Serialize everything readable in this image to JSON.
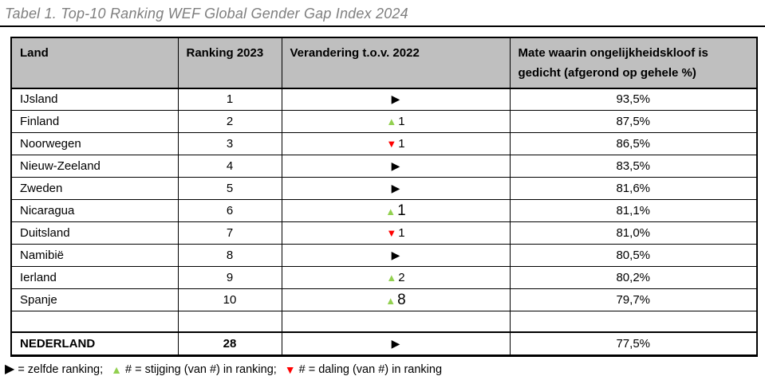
{
  "title": "Tabel 1. Top-10 Ranking WEF Global Gender Gap Index 2024",
  "glyphs": {
    "same": "▶",
    "up": "▲",
    "down": "▼"
  },
  "colors": {
    "up": "#92d050",
    "down": "#ff0000",
    "same": "#000000",
    "header_bg": "#bfbfbf",
    "title": "#7f7f7f",
    "border": "#000000"
  },
  "table": {
    "headers": [
      "Land",
      "Ranking 2023",
      "Verandering t.o.v. 2022",
      "Mate waarin ongelijkheidskloof is gedicht (afgerond op gehele %)"
    ],
    "rows": [
      {
        "land": "IJsland",
        "ranking": "1",
        "change": {
          "dir": "same",
          "amount": ""
        },
        "pct": "93,5%"
      },
      {
        "land": "Finland",
        "ranking": "2",
        "change": {
          "dir": "up",
          "amount": "1"
        },
        "pct": "87,5%"
      },
      {
        "land": "Noorwegen",
        "ranking": "3",
        "change": {
          "dir": "down",
          "amount": "1"
        },
        "pct": "86,5%"
      },
      {
        "land": "Nieuw-Zeeland",
        "ranking": "4",
        "change": {
          "dir": "same",
          "amount": ""
        },
        "pct": "83,5%"
      },
      {
        "land": "Zweden",
        "ranking": "5",
        "change": {
          "dir": "same",
          "amount": ""
        },
        "pct": "81,6%"
      },
      {
        "land": "Nicaragua",
        "ranking": "6",
        "change": {
          "dir": "up",
          "amount": "1",
          "large": true
        },
        "pct": "81,1%"
      },
      {
        "land": "Duitsland",
        "ranking": "7",
        "change": {
          "dir": "down",
          "amount": "1"
        },
        "pct": "81,0%"
      },
      {
        "land": "Namibië",
        "ranking": "8",
        "change": {
          "dir": "same",
          "amount": ""
        },
        "pct": "80,5%"
      },
      {
        "land": "Ierland",
        "ranking": "9",
        "change": {
          "dir": "up",
          "amount": "2"
        },
        "pct": "80,2%"
      },
      {
        "land": "Spanje",
        "ranking": "10",
        "change": {
          "dir": "up",
          "amount": "8",
          "large": true
        },
        "pct": "79,7%"
      }
    ],
    "footer_row": {
      "land": "NEDERLAND",
      "ranking": "28",
      "change": {
        "dir": "same",
        "amount": ""
      },
      "pct": "77,5%"
    }
  },
  "legend": {
    "parts": [
      {
        "icon": "same-rank-icon",
        "dir": "same",
        "text": "= zelfde ranking;"
      },
      {
        "icon": "up-triangle-icon",
        "dir": "up",
        "text": "# = stijging (van #) in ranking;"
      },
      {
        "icon": "down-triangle-icon",
        "dir": "down",
        "text": "# = daling (van #) in ranking"
      }
    ]
  }
}
